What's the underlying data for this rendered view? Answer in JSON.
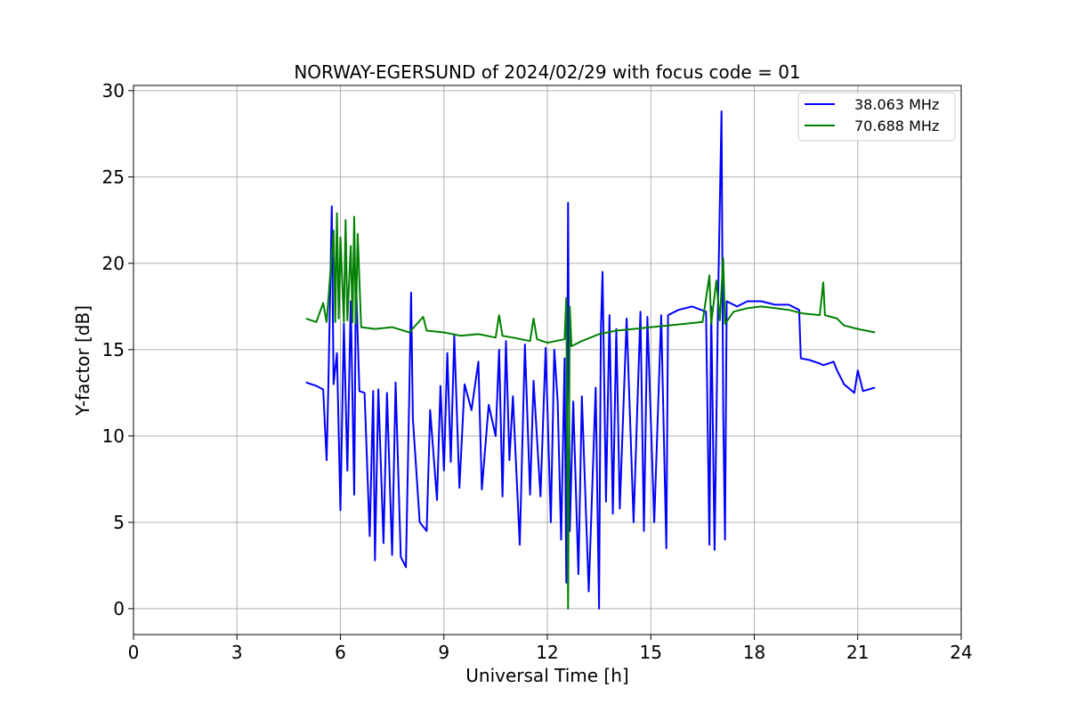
{
  "chart_data": {
    "type": "line",
    "title": "NORWAY-EGERSUND of 2024/02/29 with focus code = 01",
    "xlabel": "Universal Time [h]",
    "ylabel": "Y-factor [dB]",
    "xlim": [
      0,
      24
    ],
    "ylim": [
      -1.5,
      30.3
    ],
    "xticks": [
      0,
      3,
      6,
      9,
      12,
      15,
      18,
      21,
      24
    ],
    "yticks": [
      0,
      5,
      10,
      15,
      20,
      25,
      30
    ],
    "grid": true,
    "legend_position": "top-right",
    "series": [
      {
        "name": "38.063 MHz",
        "color": "#0000ff",
        "points": [
          [
            5.0,
            13.1
          ],
          [
            5.3,
            12.9
          ],
          [
            5.5,
            12.7
          ],
          [
            5.6,
            8.6
          ],
          [
            5.65,
            12.8
          ],
          [
            5.75,
            23.3
          ],
          [
            5.8,
            13.0
          ],
          [
            5.9,
            14.8
          ],
          [
            6.0,
            5.7
          ],
          [
            6.1,
            16.5
          ],
          [
            6.2,
            8.0
          ],
          [
            6.3,
            17.8
          ],
          [
            6.4,
            6.6
          ],
          [
            6.45,
            19.2
          ],
          [
            6.55,
            12.6
          ],
          [
            6.7,
            12.5
          ],
          [
            6.85,
            4.2
          ],
          [
            6.95,
            12.6
          ],
          [
            7.0,
            2.8
          ],
          [
            7.1,
            12.7
          ],
          [
            7.25,
            3.8
          ],
          [
            7.35,
            12.5
          ],
          [
            7.5,
            3.1
          ],
          [
            7.6,
            13.1
          ],
          [
            7.75,
            3.0
          ],
          [
            7.9,
            2.4
          ],
          [
            8.0,
            12.8
          ],
          [
            8.05,
            18.3
          ],
          [
            8.1,
            11.0
          ],
          [
            8.3,
            5.0
          ],
          [
            8.5,
            4.5
          ],
          [
            8.6,
            11.5
          ],
          [
            8.8,
            6.3
          ],
          [
            8.9,
            12.9
          ],
          [
            9.0,
            8.0
          ],
          [
            9.1,
            14.8
          ],
          [
            9.2,
            8.5
          ],
          [
            9.3,
            15.8
          ],
          [
            9.45,
            7.0
          ],
          [
            9.6,
            13.0
          ],
          [
            9.8,
            11.5
          ],
          [
            10.0,
            14.3
          ],
          [
            10.1,
            6.9
          ],
          [
            10.3,
            11.8
          ],
          [
            10.5,
            10.0
          ],
          [
            10.6,
            15.0
          ],
          [
            10.7,
            6.5
          ],
          [
            10.8,
            15.5
          ],
          [
            10.9,
            8.6
          ],
          [
            11.0,
            12.3
          ],
          [
            11.2,
            3.7
          ],
          [
            11.35,
            15.3
          ],
          [
            11.5,
            6.6
          ],
          [
            11.6,
            13.2
          ],
          [
            11.8,
            6.5
          ],
          [
            11.95,
            15.1
          ],
          [
            12.1,
            5.0
          ],
          [
            12.2,
            15.0
          ],
          [
            12.3,
            12.0
          ],
          [
            12.4,
            4.0
          ],
          [
            12.5,
            14.5
          ],
          [
            12.55,
            1.5
          ],
          [
            12.6,
            23.5
          ],
          [
            12.65,
            4.5
          ],
          [
            12.75,
            12.0
          ],
          [
            12.9,
            2.0
          ],
          [
            13.0,
            12.3
          ],
          [
            13.2,
            1.0
          ],
          [
            13.4,
            12.8
          ],
          [
            13.5,
            0.0
          ],
          [
            13.55,
            16.0
          ],
          [
            13.6,
            19.5
          ],
          [
            13.7,
            6.2
          ],
          [
            13.8,
            17.0
          ],
          [
            13.9,
            5.5
          ],
          [
            14.0,
            16.2
          ],
          [
            14.1,
            5.8
          ],
          [
            14.3,
            16.8
          ],
          [
            14.5,
            5.0
          ],
          [
            14.7,
            17.2
          ],
          [
            14.8,
            4.5
          ],
          [
            14.9,
            16.9
          ],
          [
            15.1,
            5.0
          ],
          [
            15.3,
            17.0
          ],
          [
            15.45,
            3.5
          ],
          [
            15.5,
            17.0
          ],
          [
            15.8,
            17.3
          ],
          [
            16.2,
            17.5
          ],
          [
            16.6,
            17.2
          ],
          [
            16.7,
            3.7
          ],
          [
            16.75,
            17.5
          ],
          [
            16.85,
            3.4
          ],
          [
            16.95,
            17.8
          ],
          [
            17.05,
            28.8
          ],
          [
            17.1,
            11.5
          ],
          [
            17.15,
            4.0
          ],
          [
            17.2,
            17.8
          ],
          [
            17.5,
            17.5
          ],
          [
            17.8,
            17.8
          ],
          [
            18.2,
            17.8
          ],
          [
            18.6,
            17.6
          ],
          [
            19.0,
            17.6
          ],
          [
            19.3,
            17.3
          ],
          [
            19.35,
            14.5
          ],
          [
            19.6,
            14.4
          ],
          [
            19.9,
            14.2
          ],
          [
            20.0,
            14.1
          ],
          [
            20.3,
            14.3
          ],
          [
            20.4,
            13.8
          ],
          [
            20.6,
            13.0
          ],
          [
            20.9,
            12.5
          ],
          [
            21.0,
            13.8
          ],
          [
            21.15,
            12.6
          ],
          [
            21.5,
            12.8
          ]
        ]
      },
      {
        "name": "70.688 MHz",
        "color": "#008000",
        "points": [
          [
            5.0,
            16.8
          ],
          [
            5.3,
            16.6
          ],
          [
            5.5,
            17.7
          ],
          [
            5.6,
            16.6
          ],
          [
            5.8,
            21.9
          ],
          [
            5.85,
            16.6
          ],
          [
            5.9,
            22.9
          ],
          [
            5.95,
            16.8
          ],
          [
            6.0,
            21.5
          ],
          [
            6.1,
            16.6
          ],
          [
            6.15,
            22.5
          ],
          [
            6.2,
            16.7
          ],
          [
            6.3,
            21.0
          ],
          [
            6.35,
            16.6
          ],
          [
            6.4,
            22.7
          ],
          [
            6.45,
            16.5
          ],
          [
            6.5,
            21.7
          ],
          [
            6.6,
            16.3
          ],
          [
            7.0,
            16.2
          ],
          [
            7.5,
            16.3
          ],
          [
            8.0,
            16.0
          ],
          [
            8.4,
            16.9
          ],
          [
            8.5,
            16.1
          ],
          [
            9.0,
            16.0
          ],
          [
            9.5,
            15.8
          ],
          [
            10.0,
            15.9
          ],
          [
            10.5,
            15.7
          ],
          [
            10.6,
            17.0
          ],
          [
            10.7,
            15.8
          ],
          [
            11.0,
            15.7
          ],
          [
            11.5,
            15.5
          ],
          [
            11.6,
            16.8
          ],
          [
            11.7,
            15.6
          ],
          [
            12.0,
            15.4
          ],
          [
            12.5,
            15.6
          ],
          [
            12.55,
            18.0
          ],
          [
            12.6,
            0.0
          ],
          [
            12.65,
            17.5
          ],
          [
            12.7,
            15.2
          ],
          [
            13.0,
            15.5
          ],
          [
            13.5,
            15.9
          ],
          [
            14.0,
            16.1
          ],
          [
            14.5,
            16.2
          ],
          [
            15.0,
            16.3
          ],
          [
            15.5,
            16.4
          ],
          [
            16.0,
            16.5
          ],
          [
            16.5,
            16.6
          ],
          [
            16.7,
            19.3
          ],
          [
            16.75,
            16.5
          ],
          [
            16.9,
            19.0
          ],
          [
            17.0,
            16.7
          ],
          [
            17.1,
            20.3
          ],
          [
            17.15,
            16.5
          ],
          [
            17.4,
            17.2
          ],
          [
            17.8,
            17.4
          ],
          [
            18.2,
            17.5
          ],
          [
            18.6,
            17.4
          ],
          [
            19.0,
            17.3
          ],
          [
            19.4,
            17.1
          ],
          [
            19.9,
            17.0
          ],
          [
            20.0,
            18.9
          ],
          [
            20.05,
            17.0
          ],
          [
            20.4,
            16.8
          ],
          [
            20.6,
            16.4
          ],
          [
            21.0,
            16.2
          ],
          [
            21.5,
            16.0
          ]
        ]
      }
    ]
  }
}
